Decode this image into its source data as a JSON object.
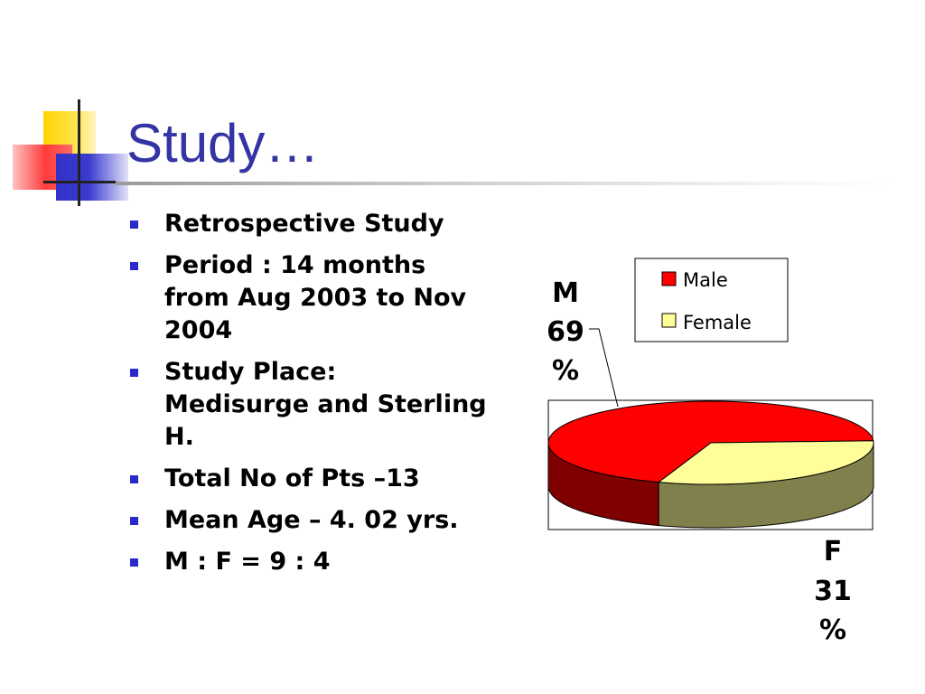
{
  "slide": {
    "title": "Study…",
    "bullets": [
      "Retrospective Study",
      "Period : 14 months from Aug 2003 to Nov 2004",
      "Study Place: Medisurge and Sterling H.",
      "Total No of Pts –13",
      "Mean Age – 4. 02 yrs.",
      "M : F = 9 : 4"
    ]
  },
  "chart_data": {
    "type": "pie",
    "categories": [
      "Male",
      "Female"
    ],
    "values": [
      69,
      31
    ],
    "slice_labels": [
      {
        "line1": "M",
        "line2": "69",
        "line3": "%"
      },
      {
        "line1": "F",
        "line2": "31",
        "line3": "%"
      }
    ],
    "legend": [
      "Male",
      "Female"
    ],
    "legend_position": "top-right",
    "colors": {
      "Male": "#ff0000",
      "Female": "#ffff99"
    }
  }
}
